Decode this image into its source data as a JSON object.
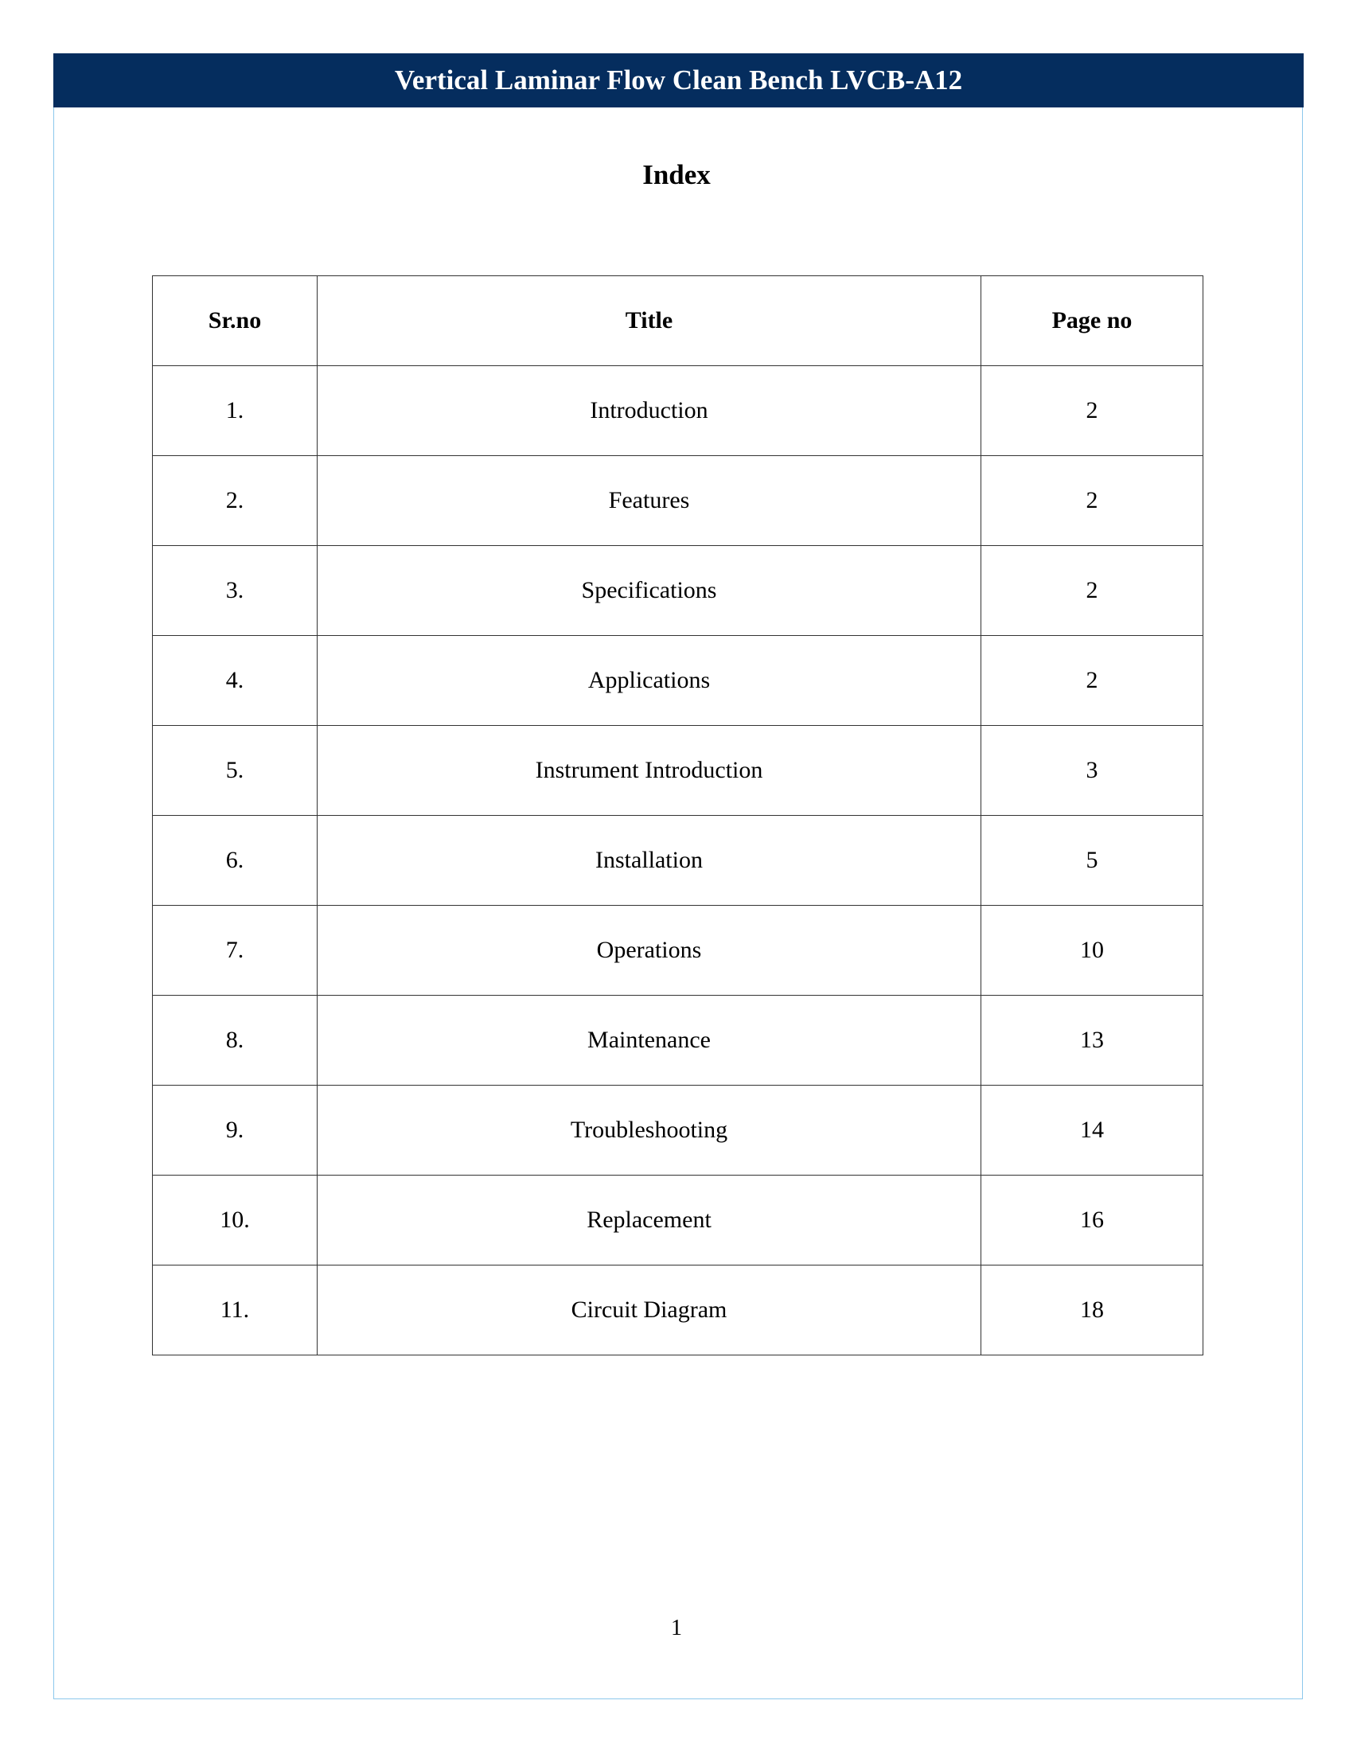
{
  "header": {
    "title": "Vertical Laminar Flow Clean Bench LVCB-A12",
    "background": "#052d5e"
  },
  "index_title": "Index",
  "table": {
    "columns": [
      "Sr.no",
      "Title",
      "Page no"
    ],
    "rows": [
      [
        "1.",
        "Introduction",
        "2"
      ],
      [
        "2.",
        "Features",
        "2"
      ],
      [
        "3.",
        "Specifications",
        "2"
      ],
      [
        "4.",
        "Applications",
        "2"
      ],
      [
        "5.",
        "Instrument Introduction",
        "3"
      ],
      [
        "6.",
        "Installation",
        "5"
      ],
      [
        "7.",
        "Operations",
        "10"
      ],
      [
        "8.",
        "Maintenance",
        "13"
      ],
      [
        "9.",
        "Troubleshooting",
        "14"
      ],
      [
        "10.",
        "Replacement",
        "16"
      ],
      [
        "11.",
        "Circuit Diagram",
        "18"
      ]
    ]
  },
  "page_number": "1"
}
